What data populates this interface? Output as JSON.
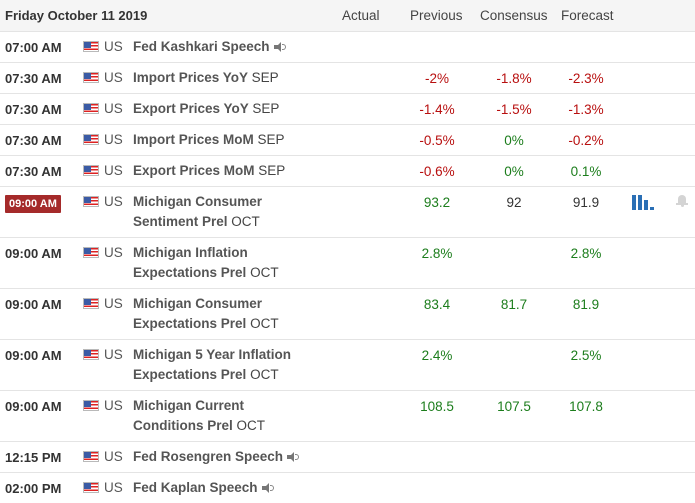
{
  "header": {
    "date": "Friday October 11 2019",
    "actual_label": "Actual",
    "previous_label": "Previous",
    "consensus_label": "Consensus",
    "forecast_label": "Forecast"
  },
  "colors": {
    "negative": "#b80f0f",
    "positive": "#1c7d1c",
    "highlight_time": "#a52a2a",
    "chart_icon": "#2a6fb5"
  },
  "rows": [
    {
      "time": "07:00 AM",
      "country": "US",
      "event": "Fed Kashkari Speech",
      "period": "",
      "speech": true,
      "actual": "",
      "previous": "",
      "consensus": "",
      "forecast": ""
    },
    {
      "time": "07:30 AM",
      "country": "US",
      "event": "Import Prices YoY",
      "period": "SEP",
      "actual": "",
      "previous": "-2%",
      "consensus": "-1.8%",
      "forecast": "-2.3%"
    },
    {
      "time": "07:30 AM",
      "country": "US",
      "event": "Export Prices YoY",
      "period": "SEP",
      "actual": "",
      "previous": "-1.4%",
      "consensus": "-1.5%",
      "forecast": "-1.3%"
    },
    {
      "time": "07:30 AM",
      "country": "US",
      "event": "Import Prices MoM",
      "period": "SEP",
      "actual": "",
      "previous": "-0.5%",
      "consensus": "0%",
      "forecast": "-0.2%"
    },
    {
      "time": "07:30 AM",
      "country": "US",
      "event": "Export Prices MoM",
      "period": "SEP",
      "actual": "",
      "previous": "-0.6%",
      "consensus": "0%",
      "forecast": "0.1%"
    },
    {
      "time": "09:00 AM",
      "country": "US",
      "event_line1": "Michigan Consumer",
      "event_line2": "Sentiment Prel",
      "period": "OCT",
      "highlight": true,
      "actual": "",
      "previous": "93.2",
      "consensus": "92",
      "forecast": "91.9",
      "icons": [
        "bar-chart-icon",
        "bell-icon"
      ]
    },
    {
      "time": "09:00 AM",
      "country": "US",
      "event_line1": "Michigan Inflation",
      "event_line2": "Expectations Prel",
      "period": "OCT",
      "actual": "",
      "previous": "2.8%",
      "consensus": "",
      "forecast": "2.8%"
    },
    {
      "time": "09:00 AM",
      "country": "US",
      "event_line1": "Michigan Consumer",
      "event_line2": "Expectations Prel",
      "period": "OCT",
      "actual": "",
      "previous": "83.4",
      "consensus": "81.7",
      "forecast": "81.9"
    },
    {
      "time": "09:00 AM",
      "country": "US",
      "event_line1": "Michigan 5 Year Inflation",
      "event_line2": "Expectations Prel",
      "period": "OCT",
      "actual": "",
      "previous": "2.4%",
      "consensus": "",
      "forecast": "2.5%"
    },
    {
      "time": "09:00 AM",
      "country": "US",
      "event_line1": "Michigan Current",
      "event_line2": "Conditions Prel",
      "period": "OCT",
      "actual": "",
      "previous": "108.5",
      "consensus": "107.5",
      "forecast": "107.8"
    },
    {
      "time": "12:15 PM",
      "country": "US",
      "event": "Fed Rosengren Speech",
      "period": "",
      "speech": true,
      "actual": "",
      "previous": "",
      "consensus": "",
      "forecast": ""
    },
    {
      "time": "02:00 PM",
      "country": "US",
      "event": "Fed Kaplan Speech",
      "period": "",
      "speech": true,
      "actual": "",
      "previous": "",
      "consensus": "",
      "forecast": ""
    }
  ]
}
